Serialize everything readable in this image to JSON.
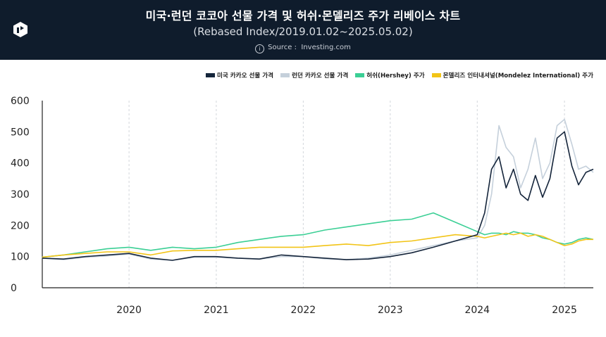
{
  "header": {
    "title": "미국·런던 코코아 선물 가격 및 허쉬·몬델리즈 주가 리베이스 차트",
    "subtitle": "(Rebased Index/2019.01.02~2025.05.02)",
    "source_prefix": "Source :",
    "source": "Investing.com",
    "logo_icon": "brand-logo-icon",
    "info_icon": "info-icon"
  },
  "chart_data": {
    "type": "line",
    "title": "미국·런던 코코아 선물 가격 및 허쉬·몬델리즈 주가 리베이스 차트",
    "subtitle": "(Rebased Index/2019.01.02~2025.05.02)",
    "xlabel": "",
    "ylabel": "",
    "ylim": [
      0,
      600
    ],
    "yticks": [
      0,
      100,
      200,
      300,
      400,
      500,
      600
    ],
    "xlim": [
      "2019-01-02",
      "2025-05-02"
    ],
    "xticks": [
      "2020",
      "2021",
      "2022",
      "2023",
      "2024",
      "2025"
    ],
    "grid": "vertical dashed at year starts",
    "legend_position": "top-right",
    "x": [
      "2019-01",
      "2019-04",
      "2019-07",
      "2019-10",
      "2020-01",
      "2020-04",
      "2020-07",
      "2020-10",
      "2021-01",
      "2021-04",
      "2021-07",
      "2021-10",
      "2022-01",
      "2022-04",
      "2022-07",
      "2022-10",
      "2023-01",
      "2023-04",
      "2023-07",
      "2023-10",
      "2024-01",
      "2024-02",
      "2024-03",
      "2024-04",
      "2024-05",
      "2024-06",
      "2024-07",
      "2024-08",
      "2024-09",
      "2024-10",
      "2024-11",
      "2024-12",
      "2025-01",
      "2025-02",
      "2025-03",
      "2025-04",
      "2025-05"
    ],
    "series": [
      {
        "name": "미국 카카오 선물 가격",
        "color": "#15253b",
        "values": [
          95,
          92,
          100,
          105,
          110,
          95,
          88,
          100,
          100,
          95,
          92,
          105,
          100,
          95,
          90,
          92,
          100,
          112,
          130,
          150,
          170,
          240,
          380,
          420,
          320,
          380,
          300,
          280,
          360,
          290,
          350,
          480,
          500,
          390,
          330,
          370,
          380
        ]
      },
      {
        "name": "런던 카카오 선물 가격",
        "color": "#c5d0db",
        "values": [
          95,
          90,
          98,
          102,
          108,
          92,
          88,
          98,
          98,
          95,
          92,
          100,
          100,
          93,
          90,
          95,
          105,
          120,
          135,
          150,
          160,
          200,
          300,
          520,
          450,
          420,
          320,
          380,
          480,
          350,
          400,
          520,
          540,
          460,
          380,
          390,
          370
        ]
      },
      {
        "name": "허쉬(Hershey) 주가",
        "color": "#3bcf95",
        "values": [
          98,
          105,
          115,
          125,
          130,
          120,
          130,
          125,
          130,
          145,
          155,
          165,
          170,
          185,
          195,
          205,
          215,
          220,
          240,
          210,
          180,
          170,
          175,
          175,
          170,
          180,
          175,
          175,
          170,
          160,
          155,
          145,
          140,
          145,
          155,
          160,
          155
        ]
      },
      {
        "name": "몬델리즈 인터내셔널(Mondelez International) 주가",
        "color": "#f2c417",
        "values": [
          98,
          105,
          110,
          115,
          115,
          105,
          118,
          120,
          120,
          125,
          130,
          130,
          130,
          135,
          140,
          135,
          145,
          150,
          160,
          170,
          165,
          160,
          165,
          170,
          175,
          170,
          175,
          165,
          170,
          165,
          155,
          145,
          135,
          140,
          150,
          155,
          155
        ]
      }
    ]
  }
}
